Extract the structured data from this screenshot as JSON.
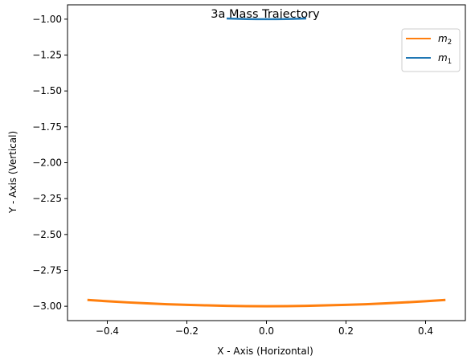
{
  "chart_data": {
    "type": "line",
    "title": "3a Mass Trajectory",
    "xlabel": "X - Axis (Horizontal)",
    "ylabel": "Y - Axis (Vertical)",
    "xlim": [
      -0.5,
      0.5
    ],
    "ylim": [
      -3.1,
      -0.9
    ],
    "x_ticks": [
      -0.4,
      -0.2,
      0.0,
      0.2,
      0.4
    ],
    "x_tick_labels": [
      "−0.4",
      "−0.2",
      "0.0",
      "0.2",
      "0.4"
    ],
    "y_ticks": [
      -1.0,
      -1.25,
      -1.5,
      -1.75,
      -2.0,
      -2.25,
      -2.5,
      -2.75,
      -3.0
    ],
    "y_tick_labels": [
      "−1.00",
      "−1.25",
      "−1.50",
      "−1.75",
      "−2.00",
      "−2.25",
      "−2.50",
      "−2.75",
      "−3.00"
    ],
    "grid": false,
    "legend_position": "top-right",
    "series": [
      {
        "name": "m2",
        "legend_base": "m",
        "legend_sub": "2",
        "color": "#ff7f0e",
        "x": [
          -0.45,
          -0.4,
          -0.35,
          -0.3,
          -0.25,
          -0.2,
          -0.15,
          -0.1,
          -0.05,
          0.0,
          0.05,
          0.1,
          0.15,
          0.2,
          0.25,
          0.3,
          0.35,
          0.4,
          0.45
        ],
        "y": [
          -2.956,
          -2.965,
          -2.973,
          -2.98,
          -2.986,
          -2.99,
          -2.994,
          -2.997,
          -2.999,
          -3.0,
          -2.999,
          -2.997,
          -2.994,
          -2.99,
          -2.986,
          -2.98,
          -2.973,
          -2.965,
          -2.956
        ]
      },
      {
        "name": "m1",
        "legend_base": "m",
        "legend_sub": "1",
        "color": "#1f77b4",
        "x": [
          -0.1,
          -0.075,
          -0.05,
          -0.025,
          0.0,
          0.025,
          0.05,
          0.075,
          0.1
        ],
        "y": [
          -0.995,
          -0.997,
          -0.999,
          -1.0,
          -1.0,
          -1.0,
          -0.999,
          -0.997,
          -0.995
        ]
      }
    ]
  }
}
